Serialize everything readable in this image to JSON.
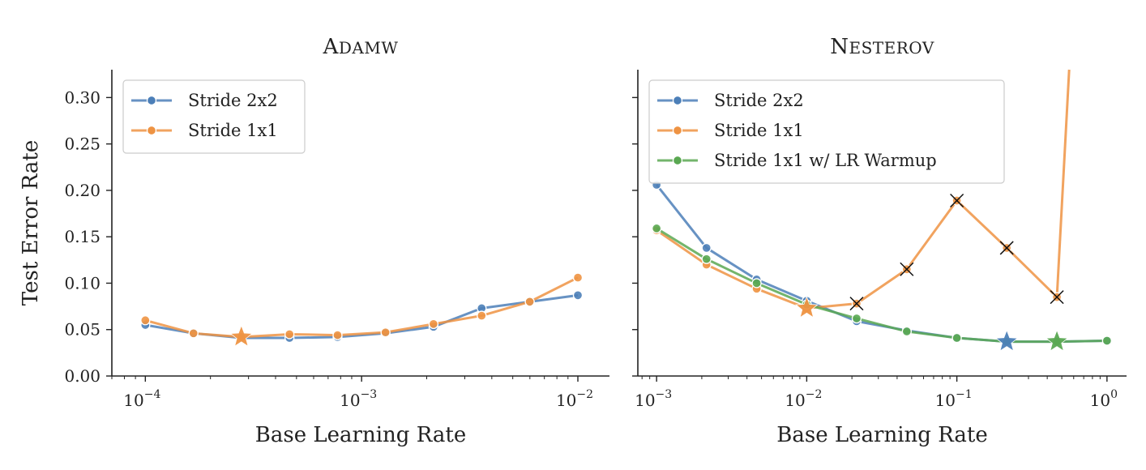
{
  "chart_data": [
    {
      "type": "line",
      "title": "AdamW",
      "xlabel": "Base Learning Rate",
      "ylabel": "Test Error Rate",
      "xscale": "log",
      "xlim": [
        7e-05,
        0.014
      ],
      "ylim": [
        0,
        0.33
      ],
      "yticks": [
        0.0,
        0.05,
        0.1,
        0.15,
        0.2,
        0.25,
        0.3
      ],
      "yticklabels": [
        "0.00",
        "0.05",
        "0.10",
        "0.15",
        "0.20",
        "0.25",
        "0.30"
      ],
      "xticks": [
        0.0001,
        0.001,
        0.01
      ],
      "xtick_bases": [
        "10",
        "10",
        "10"
      ],
      "xtick_exponents": [
        "−4",
        "−3",
        "−2"
      ],
      "legend_position": "upper-left",
      "grid": false,
      "series": [
        {
          "name": "Stride 2x2",
          "color": "#4c7fb8",
          "x": [
            0.0001,
            0.000167,
            0.000278,
            0.000464,
            0.000774,
            0.00129,
            0.00215,
            0.00359,
            0.00599,
            0.01
          ],
          "y": [
            0.055,
            0.046,
            0.041,
            0.041,
            0.042,
            0.046,
            0.053,
            0.073,
            0.08,
            0.087
          ]
        },
        {
          "name": "Stride 1x1",
          "color": "#ee9343",
          "x": [
            0.0001,
            0.000167,
            0.000278,
            0.000464,
            0.000774,
            0.00129,
            0.00215,
            0.00359,
            0.00599,
            0.01
          ],
          "y": [
            0.06,
            0.046,
            0.042,
            0.045,
            0.044,
            0.047,
            0.056,
            0.065,
            0.08,
            0.106
          ]
        }
      ],
      "best_markers": [
        {
          "series": "Stride 1x1",
          "x": 0.000278,
          "y": 0.042,
          "marker": "star"
        }
      ],
      "diverged_markers": []
    },
    {
      "type": "line",
      "title": "Nesterov",
      "xlabel": "Base Learning Rate",
      "ylabel": "",
      "xscale": "log",
      "xlim": [
        0.00075,
        1.35
      ],
      "ylim": [
        0,
        0.33
      ],
      "yticks": [
        0.0,
        0.05,
        0.1,
        0.15,
        0.2,
        0.25,
        0.3
      ],
      "yticklabels": [],
      "xticks": [
        0.001,
        0.01,
        0.1,
        1
      ],
      "xtick_bases": [
        "10",
        "10",
        "10",
        "10"
      ],
      "xtick_exponents": [
        "−3",
        "−2",
        "−1",
        "0"
      ],
      "legend_position": "upper-left",
      "grid": false,
      "series": [
        {
          "name": "Stride 2x2",
          "color": "#4c7fb8",
          "x": [
            0.001,
            0.00215,
            0.00464,
            0.01,
            0.0215,
            0.0464,
            0.1,
            0.215,
            0.464,
            1.0
          ],
          "y": [
            0.206,
            0.138,
            0.104,
            0.081,
            0.059,
            0.049,
            0.041,
            0.037,
            0.037,
            0.038
          ]
        },
        {
          "name": "Stride 1x1",
          "color": "#ee9343",
          "x": [
            0.001,
            0.00215,
            0.00464,
            0.01,
            0.0215,
            0.0464,
            0.1,
            0.215,
            0.464,
            0.56
          ],
          "y": [
            0.157,
            0.12,
            0.094,
            0.073,
            0.078,
            0.115,
            0.189,
            0.138,
            0.085,
            0.33
          ]
        },
        {
          "name": "Stride 1x1 w/ LR Warmup",
          "color": "#5aa852",
          "x": [
            0.001,
            0.00215,
            0.00464,
            0.01,
            0.0215,
            0.0464,
            0.1,
            0.215,
            0.464,
            1.0
          ],
          "y": [
            0.159,
            0.126,
            0.1,
            0.077,
            0.062,
            0.048,
            0.041,
            0.037,
            0.037,
            0.038
          ]
        }
      ],
      "best_markers": [
        {
          "series": "Stride 1x1",
          "x": 0.01,
          "y": 0.073,
          "marker": "star"
        },
        {
          "series": "Stride 2x2",
          "x": 0.215,
          "y": 0.037,
          "marker": "star"
        },
        {
          "series": "Stride 1x1 w/ LR Warmup",
          "x": 0.464,
          "y": 0.037,
          "marker": "star"
        }
      ],
      "diverged_markers": [
        {
          "series": "Stride 1x1",
          "x": 0.0215,
          "y": 0.078
        },
        {
          "series": "Stride 1x1",
          "x": 0.0464,
          "y": 0.115
        },
        {
          "series": "Stride 1x1",
          "x": 0.1,
          "y": 0.189
        },
        {
          "series": "Stride 1x1",
          "x": 0.215,
          "y": 0.138
        },
        {
          "series": "Stride 1x1",
          "x": 0.464,
          "y": 0.085
        }
      ]
    }
  ]
}
